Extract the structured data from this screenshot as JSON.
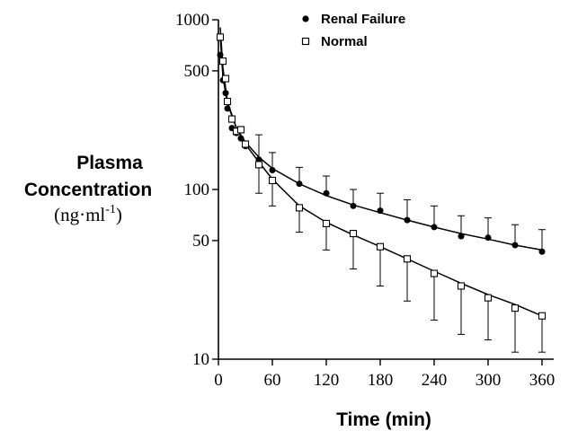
{
  "chart_data": {
    "type": "scatter",
    "title": "",
    "xlabel": "Time (min)",
    "ylabel_lines": [
      "Plasma",
      "Concentration"
    ],
    "ylabel_units": "(ng·ml",
    "ylabel_units_sup": "-1",
    "ylabel_units_close": ")",
    "xlim": [
      0,
      360
    ],
    "ylim": [
      10,
      1000
    ],
    "yscale": "log",
    "x_ticks": [
      0,
      60,
      120,
      180,
      240,
      300,
      360
    ],
    "x_tick_labels": [
      "0",
      "60",
      "120",
      "180",
      "240",
      "300",
      "360"
    ],
    "y_ticks": [
      10,
      50,
      100,
      500,
      1000
    ],
    "y_tick_labels": [
      "10",
      "50",
      "100",
      "500",
      "1000"
    ],
    "grid": false,
    "legend_position": "top-right",
    "series": [
      {
        "name": "Renal Failure",
        "marker": "filled-circle",
        "x": [
          2,
          5,
          8,
          10,
          15,
          20,
          25,
          30,
          45,
          60,
          90,
          120,
          150,
          180,
          210,
          240,
          270,
          300,
          330,
          360
        ],
        "y": [
          620,
          440,
          370,
          300,
          230,
          215,
          200,
          180,
          150,
          130,
          108,
          95,
          80,
          75,
          66,
          60,
          53,
          52,
          47,
          43
        ],
        "err_upper": [
          null,
          null,
          null,
          null,
          null,
          null,
          null,
          null,
          210,
          165,
          135,
          120,
          100,
          95,
          87,
          80,
          70,
          68,
          62,
          58
        ],
        "fit": [
          [
            2,
            800
          ],
          [
            5,
            460
          ],
          [
            10,
            320
          ],
          [
            20,
            230
          ],
          [
            30,
            190
          ],
          [
            45,
            155
          ],
          [
            60,
            133
          ],
          [
            90,
            108
          ],
          [
            120,
            92
          ],
          [
            150,
            81
          ],
          [
            180,
            73
          ],
          [
            210,
            66
          ],
          [
            240,
            60
          ],
          [
            270,
            55
          ],
          [
            300,
            51
          ],
          [
            330,
            47
          ],
          [
            360,
            44
          ]
        ]
      },
      {
        "name": "Normal",
        "marker": "open-square",
        "x": [
          2,
          5,
          8,
          10,
          15,
          20,
          25,
          30,
          45,
          60,
          90,
          120,
          150,
          180,
          210,
          240,
          270,
          300,
          330,
          360
        ],
        "y": [
          790,
          570,
          450,
          330,
          260,
          220,
          225,
          185,
          140,
          113,
          78,
          63,
          55,
          46,
          39,
          32,
          27,
          23,
          20,
          18
        ],
        "err_lower": [
          null,
          null,
          null,
          null,
          null,
          null,
          null,
          null,
          95,
          80,
          56,
          44,
          34,
          27,
          22,
          17,
          14,
          13,
          11,
          11
        ],
        "fit": [
          [
            2,
            900
          ],
          [
            5,
            520
          ],
          [
            10,
            330
          ],
          [
            20,
            230
          ],
          [
            30,
            185
          ],
          [
            45,
            145
          ],
          [
            60,
            115
          ],
          [
            90,
            80
          ],
          [
            120,
            64
          ],
          [
            150,
            54
          ],
          [
            180,
            46
          ],
          [
            210,
            39
          ],
          [
            240,
            33
          ],
          [
            270,
            28
          ],
          [
            300,
            24
          ],
          [
            330,
            21
          ],
          [
            360,
            18
          ]
        ]
      }
    ]
  }
}
